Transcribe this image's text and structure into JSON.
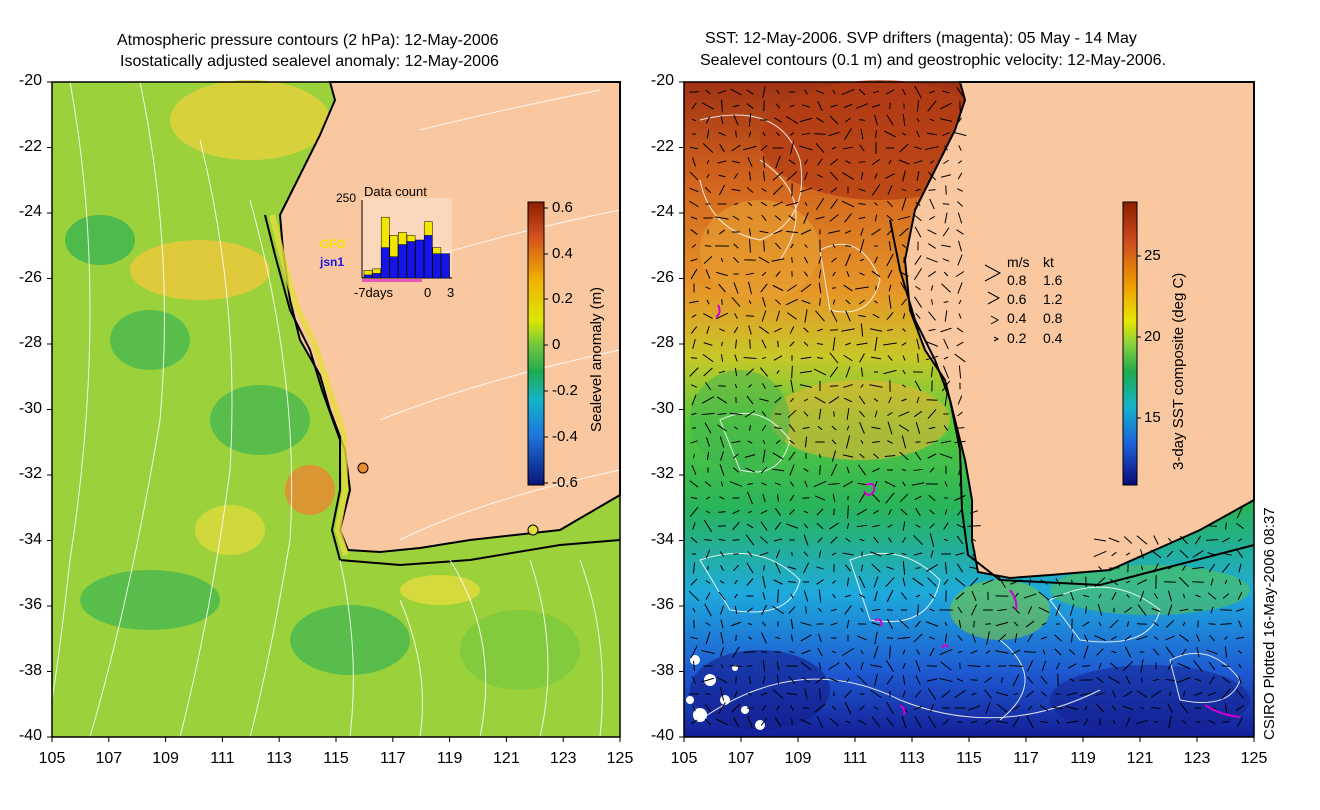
{
  "left_panel": {
    "title_line1": "Atmospheric pressure contours (2 hPa): 12-May-2006",
    "title_line2": "Isostatically adjusted sealevel anomaly: 12-May-2006",
    "colorbar_label": "Sealevel anomaly (m)",
    "colorbar_ticks": [
      "0.6",
      "0.4",
      "0.2",
      "0",
      "-0.2",
      "-0.4",
      "-0.6"
    ],
    "inset": {
      "title": "Data count",
      "ymax_label": "250",
      "series": [
        "GFO",
        "jsn1"
      ],
      "series_colors": [
        "#f2e600",
        "#1414e6"
      ],
      "xlabel_left": "-7days",
      "xlabel_mid": "0",
      "xlabel_right": "3",
      "gfo_counts": [
        25,
        30,
        200,
        140,
        150,
        140,
        120,
        185,
        100,
        70
      ],
      "jsn1_counts": [
        10,
        15,
        100,
        70,
        110,
        120,
        125,
        140,
        80,
        80
      ]
    }
  },
  "right_panel": {
    "title_line1": "SST: 12-May-2006. SVP drifters (magenta): 05 May - 14 May",
    "title_line2": "Sealevel contours (0.1 m) and geostrophic velocity: 12-May-2006.",
    "colorbar_label": "3-day SST composite (deg C)",
    "colorbar_ticks": [
      "25",
      "20",
      "15"
    ],
    "legend": {
      "header_ms": "m/s",
      "header_kt": "kt",
      "rows": [
        {
          "ms": "0.8",
          "kt": "1.6"
        },
        {
          "ms": "0.6",
          "kt": "1.2"
        },
        {
          "ms": "0.4",
          "kt": "0.8"
        },
        {
          "ms": "0.2",
          "kt": "0.4"
        }
      ]
    }
  },
  "axes": {
    "lat_ticks": [
      "-20",
      "-22",
      "-24",
      "-26",
      "-28",
      "-30",
      "-32",
      "-34",
      "-36",
      "-38",
      "-40"
    ],
    "lon_ticks": [
      "105",
      "107",
      "109",
      "111",
      "113",
      "115",
      "117",
      "119",
      "121",
      "123",
      "125"
    ],
    "lat_range": [
      -40,
      -20
    ],
    "lon_range": [
      105,
      125
    ]
  },
  "plotted_stamp": "CSIRO Plotted 16-May-2006 08:37",
  "colors": {
    "land": "#fac8a0",
    "sla_bg": "#9bd23c",
    "ocean_warm": "#e07020",
    "ocean_cool": "#1e5ad2"
  }
}
